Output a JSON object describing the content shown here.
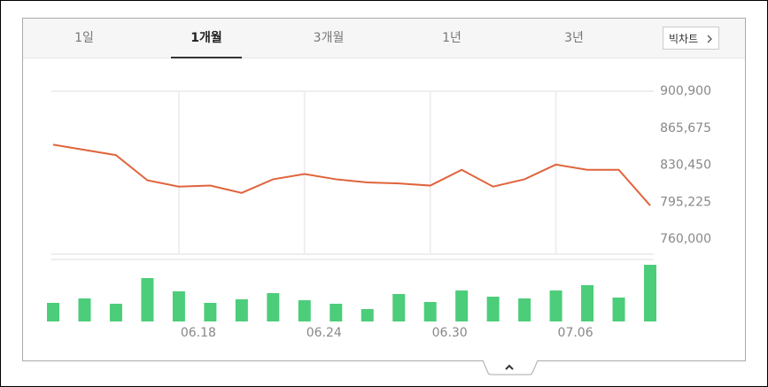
{
  "tabs": [
    "1일",
    "1개월",
    "3개월",
    "1년",
    "3년"
  ],
  "active_tab": 1,
  "big_chart_button": "빅차트",
  "chart_data": [
    {
      "type": "line",
      "color": "#e0643c",
      "values": [
        850000,
        845000,
        840000,
        816000,
        810000,
        811000,
        804000,
        817000,
        822000,
        817000,
        814000,
        813000,
        811000,
        826000,
        810000,
        817000,
        831000,
        826000,
        826000,
        792000
      ],
      "ylim": [
        760000,
        900900
      ],
      "yticks": [
        {
          "value": 760000,
          "label": "760,000"
        },
        {
          "value": 795225,
          "label": "795,225"
        },
        {
          "value": 830450,
          "label": "830,450"
        },
        {
          "value": 865675,
          "label": "865,675"
        },
        {
          "value": 900900,
          "label": "900,900"
        }
      ]
    },
    {
      "type": "bar",
      "color": "#4ccd7a",
      "categories": [
        null,
        null,
        null,
        null,
        "06.18",
        null,
        null,
        null,
        "06.24",
        null,
        null,
        null,
        "06.30",
        null,
        null,
        null,
        "07.06",
        null,
        null,
        null
      ],
      "values": [
        21,
        26,
        20,
        49,
        34,
        21,
        25,
        32,
        24,
        20,
        14,
        31,
        22,
        35,
        28,
        26,
        35,
        41,
        27,
        64
      ],
      "ylim": [
        0,
        70
      ]
    }
  ]
}
